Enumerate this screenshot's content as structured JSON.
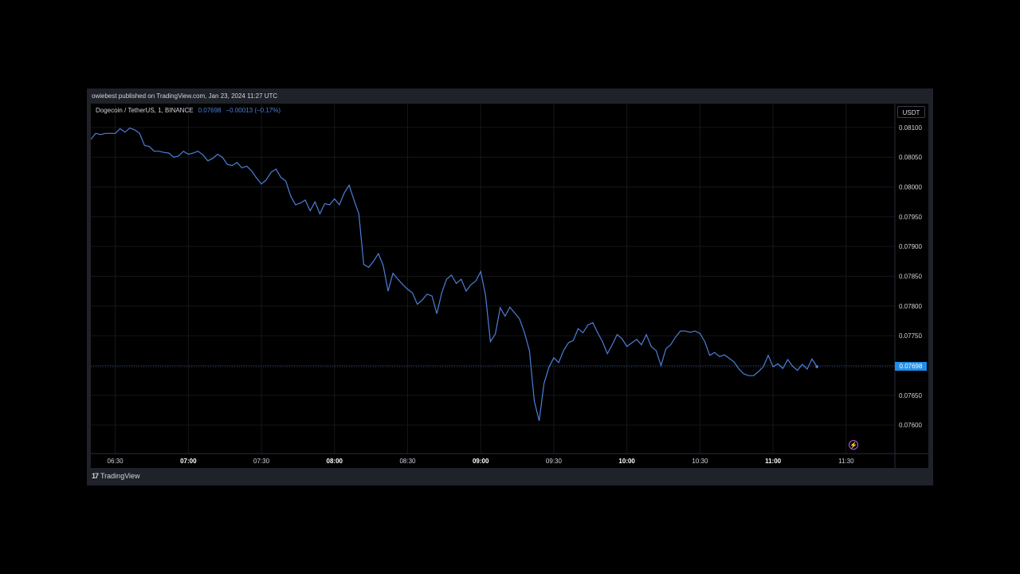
{
  "header": {
    "published_text": "owiebest published on TradingView.com, Jan 23, 2024 11:27 UTC"
  },
  "legend": {
    "symbol": "Dogecoin / TetherUS, 1, BINANCE",
    "last": "0.07698",
    "change": "−0.00013 (−0.17%)"
  },
  "currency_button": "USDT",
  "price_tag": "0.07698",
  "footer": {
    "brand": "TradingView",
    "logo_glyph": "17"
  },
  "colors": {
    "line": "#4c7fd9",
    "background": "#000000",
    "frame": "#1f2229",
    "price_tag": "#1f8ee8"
  },
  "chart_data": {
    "type": "line",
    "title": "Dogecoin / TetherUS, 1, BINANCE",
    "xlabel": "",
    "ylabel": "",
    "grid": true,
    "y_ticks": [
      "0.08100",
      "0.08050",
      "0.08000",
      "0.07950",
      "0.07900",
      "0.07850",
      "0.07800",
      "0.07750",
      "0.07700",
      "0.07650",
      "0.07600"
    ],
    "ylim": [
      0.07552,
      0.0814
    ],
    "x_ticks": [
      {
        "label": "06:30",
        "major": false
      },
      {
        "label": "07:00",
        "major": true
      },
      {
        "label": "07:30",
        "major": false
      },
      {
        "label": "08:00",
        "major": true
      },
      {
        "label": "08:30",
        "major": false
      },
      {
        "label": "09:00",
        "major": true
      },
      {
        "label": "09:30",
        "major": false
      },
      {
        "label": "10:00",
        "major": true
      },
      {
        "label": "10:30",
        "major": false
      },
      {
        "label": "11:00",
        "major": true
      },
      {
        "label": "11:30",
        "major": false
      }
    ],
    "xlim": [
      "06:20",
      "11:50"
    ],
    "last_value": 0.07698,
    "series": [
      {
        "values": [
          [
            "06:20",
            0.0808
          ],
          [
            "06:22",
            0.0809
          ],
          [
            "06:24",
            0.08088
          ],
          [
            "06:26",
            0.0809
          ],
          [
            "06:28",
            0.0809
          ],
          [
            "06:30",
            0.0809
          ],
          [
            "06:32",
            0.08098
          ],
          [
            "06:34",
            0.08092
          ],
          [
            "06:36",
            0.08099
          ],
          [
            "06:38",
            0.08096
          ],
          [
            "06:40",
            0.0809
          ],
          [
            "06:42",
            0.0807
          ],
          [
            "06:44",
            0.08068
          ],
          [
            "06:46",
            0.0806
          ],
          [
            "06:48",
            0.0806
          ],
          [
            "06:50",
            0.08058
          ],
          [
            "06:52",
            0.08057
          ],
          [
            "06:54",
            0.0805
          ],
          [
            "06:56",
            0.08052
          ],
          [
            "06:58",
            0.0806
          ],
          [
            "07:00",
            0.08055
          ],
          [
            "07:02",
            0.08057
          ],
          [
            "07:04",
            0.0806
          ],
          [
            "07:06",
            0.08054
          ],
          [
            "07:08",
            0.08044
          ],
          [
            "07:10",
            0.08048
          ],
          [
            "07:12",
            0.08055
          ],
          [
            "07:14",
            0.0805
          ],
          [
            "07:16",
            0.08038
          ],
          [
            "07:18",
            0.08036
          ],
          [
            "07:20",
            0.08041
          ],
          [
            "07:22",
            0.08032
          ],
          [
            "07:24",
            0.08035
          ],
          [
            "07:26",
            0.08027
          ],
          [
            "07:28",
            0.08015
          ],
          [
            "07:30",
            0.08005
          ],
          [
            "07:32",
            0.08012
          ],
          [
            "07:34",
            0.08025
          ],
          [
            "07:36",
            0.0803
          ],
          [
            "07:38",
            0.08016
          ],
          [
            "07:40",
            0.0801
          ],
          [
            "07:42",
            0.07985
          ],
          [
            "07:44",
            0.0797
          ],
          [
            "07:46",
            0.07973
          ],
          [
            "07:48",
            0.07978
          ],
          [
            "07:50",
            0.0796
          ],
          [
            "07:52",
            0.07975
          ],
          [
            "07:54",
            0.07955
          ],
          [
            "07:56",
            0.07972
          ],
          [
            "07:58",
            0.0797
          ],
          [
            "08:00",
            0.0798
          ],
          [
            "08:02",
            0.0797
          ],
          [
            "08:04",
            0.0799
          ],
          [
            "08:06",
            0.08003
          ],
          [
            "08:08",
            0.07978
          ],
          [
            "08:10",
            0.07955
          ],
          [
            "08:12",
            0.0787
          ],
          [
            "08:14",
            0.07865
          ],
          [
            "08:16",
            0.07875
          ],
          [
            "08:18",
            0.07888
          ],
          [
            "08:20",
            0.07868
          ],
          [
            "08:22",
            0.07825
          ],
          [
            "08:24",
            0.07855
          ],
          [
            "08:26",
            0.07845
          ],
          [
            "08:28",
            0.07836
          ],
          [
            "08:30",
            0.07828
          ],
          [
            "08:32",
            0.07822
          ],
          [
            "08:34",
            0.07803
          ],
          [
            "08:36",
            0.0781
          ],
          [
            "08:38",
            0.0782
          ],
          [
            "08:40",
            0.07817
          ],
          [
            "08:42",
            0.07787
          ],
          [
            "08:44",
            0.07822
          ],
          [
            "08:46",
            0.07845
          ],
          [
            "08:48",
            0.07852
          ],
          [
            "08:50",
            0.07838
          ],
          [
            "08:52",
            0.07845
          ],
          [
            "08:54",
            0.07825
          ],
          [
            "08:56",
            0.07836
          ],
          [
            "08:58",
            0.07842
          ],
          [
            "09:00",
            0.07858
          ],
          [
            "09:02",
            0.07818
          ],
          [
            "09:04",
            0.0774
          ],
          [
            "09:06",
            0.07753
          ],
          [
            "09:08",
            0.07797
          ],
          [
            "09:10",
            0.07783
          ],
          [
            "09:12",
            0.07798
          ],
          [
            "09:14",
            0.07788
          ],
          [
            "09:16",
            0.07778
          ],
          [
            "09:18",
            0.07755
          ],
          [
            "09:20",
            0.07725
          ],
          [
            "09:22",
            0.0764
          ],
          [
            "09:24",
            0.07607
          ],
          [
            "09:26",
            0.0767
          ],
          [
            "09:28",
            0.07697
          ],
          [
            "09:30",
            0.07713
          ],
          [
            "09:32",
            0.07705
          ],
          [
            "09:34",
            0.07725
          ],
          [
            "09:36",
            0.07738
          ],
          [
            "09:38",
            0.07742
          ],
          [
            "09:40",
            0.07762
          ],
          [
            "09:42",
            0.07755
          ],
          [
            "09:44",
            0.07768
          ],
          [
            "09:46",
            0.07772
          ],
          [
            "09:48",
            0.07755
          ],
          [
            "09:50",
            0.0774
          ],
          [
            "09:52",
            0.0772
          ],
          [
            "09:54",
            0.07735
          ],
          [
            "09:56",
            0.07752
          ],
          [
            "09:58",
            0.07745
          ],
          [
            "10:00",
            0.07732
          ],
          [
            "10:02",
            0.07738
          ],
          [
            "10:04",
            0.07744
          ],
          [
            "10:06",
            0.07735
          ],
          [
            "10:08",
            0.07752
          ],
          [
            "10:10",
            0.07732
          ],
          [
            "10:12",
            0.07725
          ],
          [
            "10:14",
            0.077
          ],
          [
            "10:16",
            0.07728
          ],
          [
            "10:18",
            0.07735
          ],
          [
            "10:20",
            0.07748
          ],
          [
            "10:22",
            0.07758
          ],
          [
            "10:24",
            0.07758
          ],
          [
            "10:26",
            0.07756
          ],
          [
            "10:28",
            0.07758
          ],
          [
            "10:30",
            0.07754
          ],
          [
            "10:32",
            0.0774
          ],
          [
            "10:34",
            0.07717
          ],
          [
            "10:36",
            0.07722
          ],
          [
            "10:38",
            0.07715
          ],
          [
            "10:40",
            0.07718
          ],
          [
            "10:42",
            0.07712
          ],
          [
            "10:44",
            0.07706
          ],
          [
            "10:46",
            0.07694
          ],
          [
            "10:48",
            0.07686
          ],
          [
            "10:50",
            0.07683
          ],
          [
            "10:52",
            0.07683
          ],
          [
            "10:54",
            0.0769
          ],
          [
            "10:56",
            0.07698
          ],
          [
            "10:58",
            0.07717
          ],
          [
            "11:00",
            0.07698
          ],
          [
            "11:02",
            0.07703
          ],
          [
            "11:04",
            0.07695
          ],
          [
            "11:06",
            0.0771
          ],
          [
            "11:08",
            0.07699
          ],
          [
            "11:10",
            0.07692
          ],
          [
            "11:12",
            0.07702
          ],
          [
            "11:14",
            0.07694
          ],
          [
            "11:16",
            0.07711
          ],
          [
            "11:18",
            0.07698
          ]
        ]
      }
    ]
  }
}
